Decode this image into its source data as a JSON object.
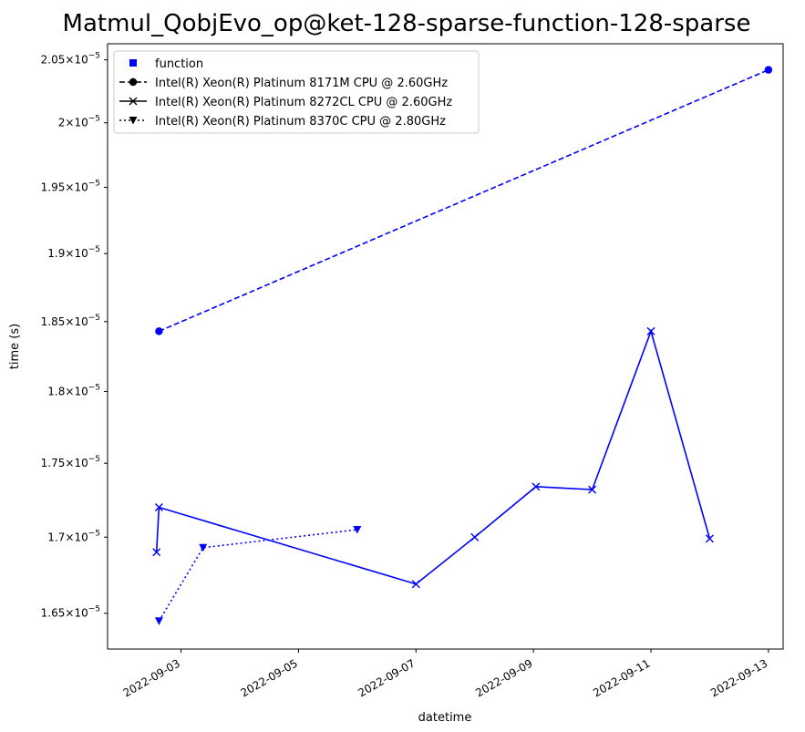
{
  "chart_data": {
    "type": "line",
    "title": "Matmul_QobjEvo_op@ket-128-sparse-function-128-sparse",
    "xlabel": "datetime",
    "ylabel": "time (s)",
    "x_type": "date",
    "xlim": [
      "2022-09-01 18:00",
      "2022-09-13 06:00"
    ],
    "ylim": [
      1.627e-05,
      2.063e-05
    ],
    "x_ticks": [
      "2022-09-03",
      "2022-09-05",
      "2022-09-07",
      "2022-09-09",
      "2022-09-11",
      "2022-09-13"
    ],
    "y_ticks": [
      {
        "value": 1.65e-05,
        "mantissa": "1.65",
        "exp": "−5"
      },
      {
        "value": 1.7e-05,
        "mantissa": "1.7",
        "exp": "−5"
      },
      {
        "value": 1.75e-05,
        "mantissa": "1.75",
        "exp": "−5"
      },
      {
        "value": 1.8e-05,
        "mantissa": "1.8",
        "exp": "−5"
      },
      {
        "value": 1.85e-05,
        "mantissa": "1.85",
        "exp": "−5"
      },
      {
        "value": 1.9e-05,
        "mantissa": "1.9",
        "exp": "−5"
      },
      {
        "value": 1.95e-05,
        "mantissa": "1.95",
        "exp": "−5"
      },
      {
        "value": 2e-05,
        "mantissa": "2",
        "exp": "−5"
      },
      {
        "value": 2.05e-05,
        "mantissa": "2.05",
        "exp": "−5"
      }
    ],
    "y_log_scale": true,
    "grid": false,
    "legend_position": "top-left",
    "color": "#0000ff",
    "legend": [
      {
        "label": "function",
        "marker": "square",
        "linestyle": "none"
      },
      {
        "label": "Intel(R) Xeon(R) Platinum 8171M CPU @ 2.60GHz",
        "marker": "circle",
        "linestyle": "dashed"
      },
      {
        "label": "Intel(R) Xeon(R) Platinum 8272CL CPU @ 2.60GHz",
        "marker": "x",
        "linestyle": "solid"
      },
      {
        "label": "Intel(R) Xeon(R) Platinum 8370C CPU @ 2.80GHz",
        "marker": "triangle-down",
        "linestyle": "dotted"
      }
    ],
    "series": [
      {
        "name": "Intel(R) Xeon(R) Platinum 8171M CPU @ 2.60GHz",
        "marker": "circle",
        "linestyle": "dashed",
        "points": [
          {
            "x": "2022-09-02 15:00",
            "y": 1.843e-05
          },
          {
            "x": "2022-09-13 00:00",
            "y": 2.042e-05
          }
        ]
      },
      {
        "name": "Intel(R) Xeon(R) Platinum 8272CL CPU @ 2.60GHz",
        "marker": "x",
        "linestyle": "solid",
        "points": [
          {
            "x": "2022-09-02 14:00",
            "y": 1.69e-05
          },
          {
            "x": "2022-09-02 15:00",
            "y": 1.72e-05
          },
          {
            "x": "2022-09-07 00:00",
            "y": 1.669e-05
          },
          {
            "x": "2022-09-08 00:00",
            "y": 1.7e-05
          },
          {
            "x": "2022-09-09 01:00",
            "y": 1.734e-05
          },
          {
            "x": "2022-09-10 00:00",
            "y": 1.732e-05
          },
          {
            "x": "2022-09-11 00:00",
            "y": 1.843e-05
          },
          {
            "x": "2022-09-12 00:00",
            "y": 1.699e-05
          }
        ]
      },
      {
        "name": "Intel(R) Xeon(R) Platinum 8370C CPU @ 2.80GHz",
        "marker": "triangle-down",
        "linestyle": "dotted",
        "points": [
          {
            "x": "2022-09-02 15:00",
            "y": 1.645e-05
          },
          {
            "x": "2022-09-03 09:00",
            "y": 1.693e-05
          },
          {
            "x": "2022-09-06 00:00",
            "y": 1.705e-05
          }
        ]
      }
    ]
  }
}
